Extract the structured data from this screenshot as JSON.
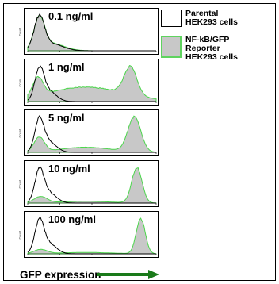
{
  "chart_data": {
    "type": "histogram",
    "xlabel": "GFP expression",
    "x_scale": "log",
    "panels": [
      {
        "concentration": "0.1 ng/ml",
        "ylabel": "Count"
      },
      {
        "concentration": "1 ng/ml",
        "ylabel": "Count"
      },
      {
        "concentration": "5 ng/ml",
        "ylabel": "Count"
      },
      {
        "concentration": "10 ng/ml",
        "ylabel": "Count"
      },
      {
        "concentration": "100 ng/ml",
        "ylabel": "Count"
      }
    ],
    "legend": [
      {
        "label": "Parental\nHEK293 cells",
        "fill": "#ffffff",
        "stroke": "#000000"
      },
      {
        "label": "NF-kB/GFP\nReporter\nHEK293 cells",
        "fill": "#c8c8c8",
        "stroke": "#5fd35f"
      }
    ],
    "colors": {
      "parental": "#000000",
      "reporter_fill": "#c8c8c8",
      "reporter_edge": "#4cd64c",
      "arrow": "#1a7a1a"
    }
  }
}
